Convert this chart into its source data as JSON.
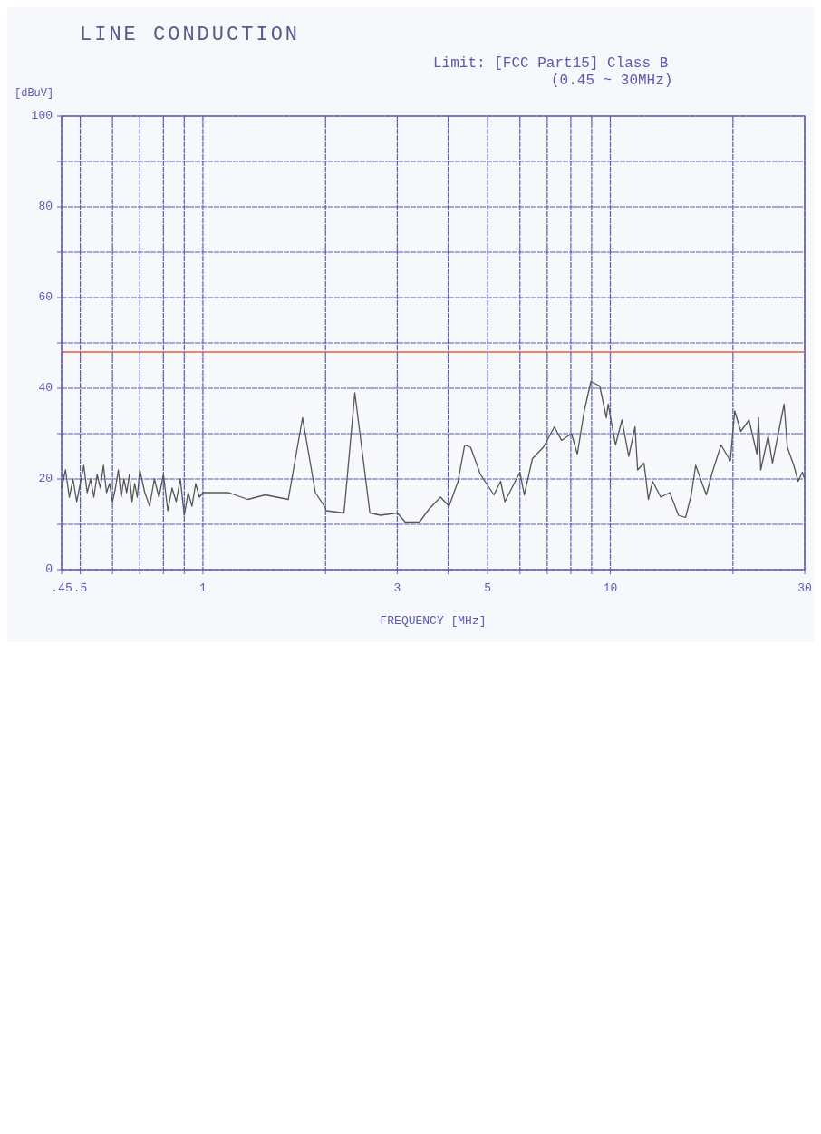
{
  "chart_data": {
    "type": "line",
    "title": "LINE CONDUCTION",
    "subtitle": "Limit: [FCC Part15] Class B\n(0.45 ~ 30MHz)",
    "xlabel": "FREQUENCY [MHz]",
    "ylabel": "[dBuV]",
    "log": "x",
    "grid": true,
    "marker": "none",
    "line_style": "solid",
    "xlim": [
      0.45,
      30
    ],
    "ylim": [
      0,
      100
    ],
    "xticks": [
      {
        "value": 0.45,
        "label": ".45"
      },
      {
        "value": 0.5,
        "label": ".5"
      },
      {
        "value": 0.6,
        "label": null
      },
      {
        "value": 0.7,
        "label": null
      },
      {
        "value": 0.8,
        "label": null
      },
      {
        "value": 0.9,
        "label": null
      },
      1,
      {
        "value": 2,
        "label": null
      },
      3,
      {
        "value": 4,
        "label": null
      },
      5,
      {
        "value": 6,
        "label": null
      },
      {
        "value": 7,
        "label": null
      },
      {
        "value": 8,
        "label": null
      },
      {
        "value": 9,
        "label": null
      },
      10,
      {
        "value": 20,
        "label": null
      },
      30
    ],
    "yticks": [
      0,
      {
        "value": 10,
        "label": null
      },
      20,
      {
        "value": 30,
        "label": null
      },
      40,
      {
        "value": 50,
        "label": null
      },
      60,
      {
        "value": 70,
        "label": null
      },
      80,
      {
        "value": 90,
        "label": null
      },
      100
    ],
    "ref_lines": [
      {
        "axis": "y",
        "value": 48,
        "color": "#e0603c"
      }
    ],
    "series": [
      {
        "color": "#555555",
        "x": [
          0.45,
          0.46,
          0.47,
          0.48,
          0.49,
          0.5,
          0.51,
          0.52,
          0.53,
          0.54,
          0.55,
          0.56,
          0.57,
          0.58,
          0.59,
          0.6,
          0.61,
          0.62,
          0.63,
          0.64,
          0.65,
          0.66,
          0.67,
          0.68,
          0.69,
          0.7,
          0.72,
          0.74,
          0.76,
          0.78,
          0.8,
          0.82,
          0.84,
          0.86,
          0.88,
          0.9,
          0.92,
          0.94,
          0.96,
          0.98,
          1,
          1.157,
          1.289,
          1.422,
          1.62,
          1.756,
          1.888,
          1.97,
          2.01,
          2.22,
          2.36,
          2.57,
          2.73,
          3,
          3.14,
          3.4,
          3.6,
          3.83,
          4.02,
          4.23,
          4.39,
          4.54,
          4.8,
          5.18,
          5.38,
          5.51,
          6,
          6.15,
          6.44,
          6.85,
          7.29,
          7.59,
          8.03,
          8.3,
          8.63,
          8.96,
          9.42,
          9.78,
          9.88,
          10.3,
          10.68,
          11.1,
          11.5,
          11.67,
          12.1,
          12.4,
          12.7,
          13.3,
          14,
          14.7,
          15.3,
          15.8,
          16.2,
          17.2,
          17.8,
          18.7,
          19.7,
          20.2,
          20.9,
          21.9,
          22.9,
          23.1,
          23.4,
          24.4,
          25,
          26.7,
          27.2,
          28.2,
          28.9,
          29.6,
          30
        ],
        "values": [
          18,
          22,
          16,
          20,
          15,
          19,
          23,
          17,
          20,
          16,
          21,
          18,
          23,
          17,
          19,
          15,
          18,
          22,
          16,
          20,
          17,
          21,
          15,
          19,
          16,
          22,
          17,
          14,
          20,
          16,
          21,
          13,
          18,
          15,
          20,
          12,
          17,
          14,
          19,
          16,
          17,
          17,
          15.5,
          16.5,
          15.5,
          33.5,
          17,
          14.5,
          13,
          12.5,
          39,
          12.5,
          12,
          12.5,
          10.5,
          10.5,
          13.5,
          16,
          14,
          19.5,
          27.5,
          27,
          21,
          16.5,
          19.5,
          15,
          21.5,
          16.5,
          24.5,
          27,
          31.5,
          28.5,
          30,
          25.5,
          35,
          41.5,
          40.5,
          33.5,
          36.5,
          27.5,
          33,
          25,
          31.5,
          22,
          23.5,
          15.5,
          19.5,
          16,
          17,
          12,
          11.5,
          16.5,
          23,
          16.5,
          21.5,
          27.5,
          24,
          35,
          30.5,
          33,
          25.5,
          33.5,
          22,
          29.5,
          23.5,
          36.5,
          27,
          23,
          19.5,
          21.5,
          20
        ]
      }
    ]
  }
}
